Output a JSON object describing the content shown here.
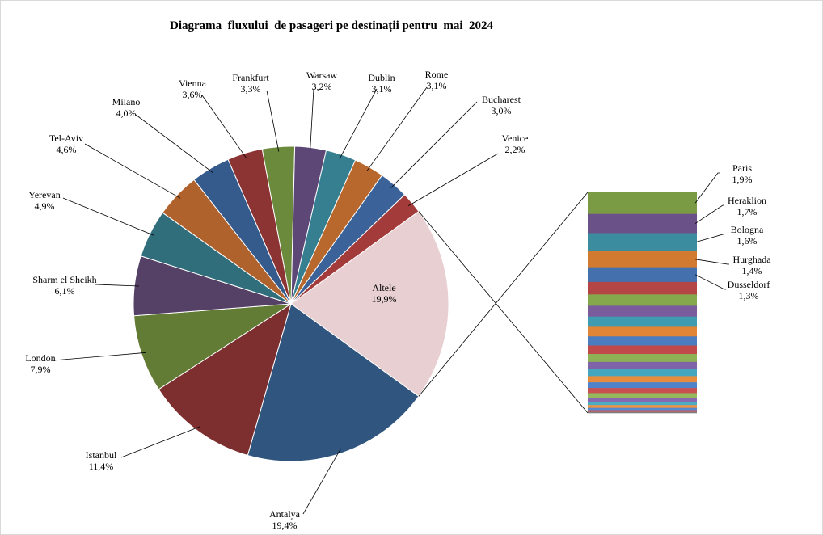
{
  "chart_data": {
    "type": "pie",
    "title": "Diagrama  fluxului  de pasageri pe destinații pentru  mai  2024",
    "main_slices": [
      {
        "label": "Altele",
        "pct": "19,9%",
        "value": 19.9,
        "color": "#e8cfd1"
      },
      {
        "label": "Antalya",
        "pct": "19,4%",
        "value": 19.4,
        "color": "#30557e"
      },
      {
        "label": "Istanbul",
        "pct": "11,4%",
        "value": 11.4,
        "color": "#7d2f2f"
      },
      {
        "label": "London",
        "pct": "7,9%",
        "value": 7.9,
        "color": "#627b35"
      },
      {
        "label": "Sharm el Sheikh",
        "pct": "6,1%",
        "value": 6.1,
        "color": "#554066"
      },
      {
        "label": "Yerevan",
        "pct": "4,9%",
        "value": 4.9,
        "color": "#316e7c"
      },
      {
        "label": "Tel-Aviv",
        "pct": "4,6%",
        "value": 4.6,
        "color": "#b0622c"
      },
      {
        "label": "Milano",
        "pct": "4,0%",
        "value": 4.0,
        "color": "#355a8c"
      },
      {
        "label": "Vienna",
        "pct": "3,6%",
        "value": 3.6,
        "color": "#8c3434"
      },
      {
        "label": "Frankfurt",
        "pct": "3,3%",
        "value": 3.3,
        "color": "#6c8a3c"
      },
      {
        "label": "Warsaw",
        "pct": "3,2%",
        "value": 3.2,
        "color": "#5c4777"
      },
      {
        "label": "Dublin",
        "pct": "3,1%",
        "value": 3.1,
        "color": "#357f91"
      },
      {
        "label": "Rome",
        "pct": "3,1%",
        "value": 3.1,
        "color": "#b8682c"
      },
      {
        "label": "Bucharest",
        "pct": "3,0%",
        "value": 3.0,
        "color": "#3b6399"
      },
      {
        "label": "Venice",
        "pct": "2,2%",
        "value": 2.2,
        "color": "#a33b3b"
      }
    ],
    "secondary_labeled": [
      {
        "label": "Paris",
        "pct": "1,9%",
        "value": 1.9,
        "color": "#7a9a43"
      },
      {
        "label": "Heraklion",
        "pct": "1,7%",
        "value": 1.7,
        "color": "#6a5188"
      },
      {
        "label": "Bologna",
        "pct": "1,6%",
        "value": 1.6,
        "color": "#3a8c9e"
      },
      {
        "label": "Hurghada",
        "pct": "1,4%",
        "value": 1.4,
        "color": "#d27a30"
      },
      {
        "label": "Dusseldorf",
        "pct": "1,3%",
        "value": 1.3,
        "color": "#4470ae"
      }
    ],
    "secondary_unlabeled": [
      {
        "value": 1.1,
        "color": "#b44545"
      },
      {
        "value": 1.0,
        "color": "#86a84c"
      },
      {
        "value": 0.95,
        "color": "#7a5b9c"
      },
      {
        "value": 0.9,
        "color": "#3f9bb0"
      },
      {
        "value": 0.85,
        "color": "#e08536"
      },
      {
        "value": 0.8,
        "color": "#4a7cbf"
      },
      {
        "value": 0.75,
        "color": "#c04a4a"
      },
      {
        "value": 0.7,
        "color": "#8fb155"
      },
      {
        "value": 0.65,
        "color": "#7e63a8"
      },
      {
        "value": 0.6,
        "color": "#44a6bc"
      },
      {
        "value": 0.55,
        "color": "#e68c3c"
      },
      {
        "value": 0.5,
        "color": "#4f82c8"
      },
      {
        "value": 0.45,
        "color": "#c85050"
      },
      {
        "value": 0.4,
        "color": "#96b85c"
      },
      {
        "value": 0.35,
        "color": "#8669b0"
      },
      {
        "value": 0.3,
        "color": "#4aadc4"
      },
      {
        "value": 0.25,
        "color": "#eb9244"
      },
      {
        "value": 0.2,
        "color": "#5589d0"
      },
      {
        "value": 0.15,
        "color": "#d05656"
      },
      {
        "value": 0.1,
        "color": "#7f7f7f"
      }
    ],
    "legend": "none"
  }
}
